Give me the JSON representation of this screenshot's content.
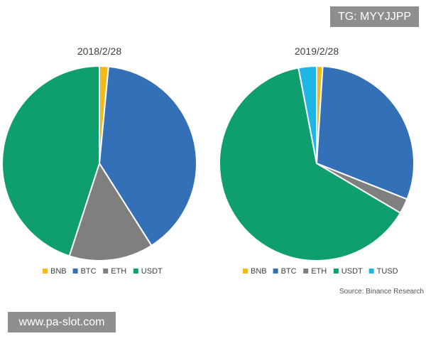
{
  "watermarks": {
    "top": "TG: MYYJJPP",
    "bottom": "www.pa-slot.com"
  },
  "source": "Source: Binance Research",
  "colors": {
    "BNB": "#f2b81c",
    "BTC": "#3470b8",
    "ETH": "#7f7f7f",
    "USDT": "#0f9e6e",
    "TUSD": "#1fb6e5"
  },
  "chart_data": [
    {
      "type": "pie",
      "title": "2018/2/28",
      "legend_position": "bottom",
      "slices": [
        {
          "label": "BNB",
          "value": 1.5
        },
        {
          "label": "BTC",
          "value": 39.5
        },
        {
          "label": "ETH",
          "value": 14
        },
        {
          "label": "USDT",
          "value": 45
        }
      ]
    },
    {
      "type": "pie",
      "title": "2019/2/28",
      "legend_position": "bottom",
      "slices": [
        {
          "label": "BNB",
          "value": 1
        },
        {
          "label": "BTC",
          "value": 30
        },
        {
          "label": "ETH",
          "value": 2.5
        },
        {
          "label": "USDT",
          "value": 63.5
        },
        {
          "label": "TUSD",
          "value": 3
        }
      ]
    }
  ]
}
